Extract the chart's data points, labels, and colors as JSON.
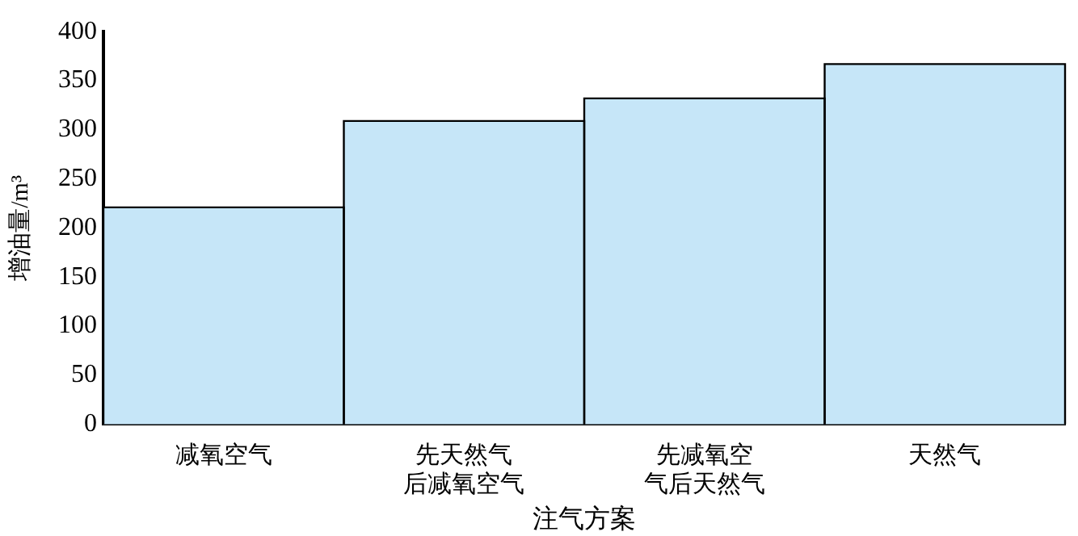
{
  "chart_data": {
    "type": "bar",
    "xlabel": "注气方案",
    "ylabel": "增油量/m³",
    "categories": [
      "减氧空气",
      "先天然气后减氧空气",
      "先减氧空气后天然气",
      "天然气"
    ],
    "values": [
      221,
      309,
      332,
      367
    ],
    "color": "#c6e6f8",
    "ylim": [
      0,
      400
    ],
    "yticks": [
      0,
      50,
      100,
      150,
      200,
      250,
      300,
      350,
      400
    ],
    "grid": false,
    "legend": false
  }
}
